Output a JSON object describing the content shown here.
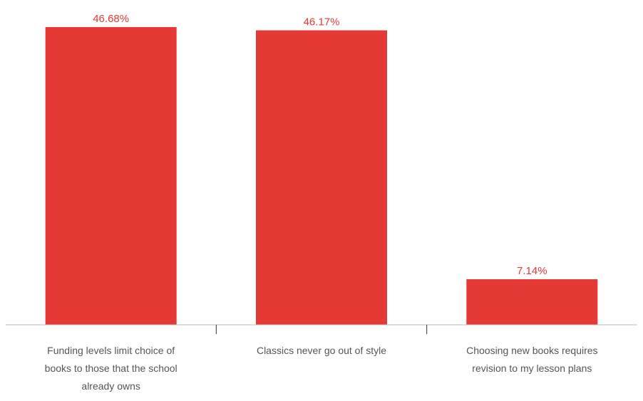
{
  "chart_data": {
    "type": "bar",
    "title": "",
    "xlabel": "",
    "ylabel": "",
    "ylim": [
      0,
      46.68
    ],
    "grid": false,
    "legend": "none",
    "categories": [
      [
        "Funding levels limit choice of",
        "books to those that the school",
        "already owns"
      ],
      [
        "Classics never go out of style"
      ],
      [
        "Choosing new books requires",
        "revision to my lesson plans"
      ]
    ],
    "values": [
      46.68,
      46.17,
      7.14
    ],
    "value_labels": [
      "46.68%",
      "46.17%",
      "7.14%"
    ],
    "colors": {
      "bar": "#e53935",
      "value_label": "#e53935",
      "category_label": "#555555",
      "axis": "#bbbbbb",
      "tick": "#333333"
    }
  }
}
